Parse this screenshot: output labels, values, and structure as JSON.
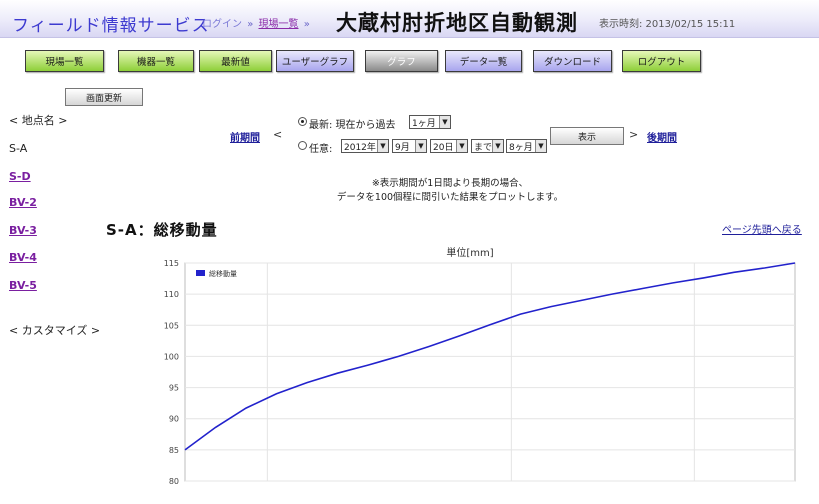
{
  "header": {
    "app_title": "フィールド情報サービス",
    "crumb_login": "ログイン",
    "crumb_sep": "»",
    "crumb_list": "現場一覧",
    "site_title": "大蔵村肘折地区自動観測",
    "display_time": "表示時刻: 2013/02/15 15:11"
  },
  "nav": {
    "site_list": "現場一覧",
    "device_list": "機器一覧",
    "latest": "最新値",
    "user_graph": "ユーザーグラフ",
    "graph": "グラフ",
    "data_list": "データ一覧",
    "download": "ダウンロード",
    "logout": "ログアウト"
  },
  "refresh_label": "画面更新",
  "sidebar": {
    "point_header": "< 地点名 >",
    "current_point": "S-A",
    "links": [
      "S-D",
      "BV-2",
      "BV-3",
      "BV-4",
      "BV-5"
    ],
    "customize": "< カスタマイズ >"
  },
  "period": {
    "prev_label": "前期間",
    "prev_arrow": "<",
    "latest_text": "最新: 現在から過去",
    "latest_range": "1ヶ月",
    "any_text": "任意:",
    "year": "2012年",
    "month": "9月",
    "day": "20日",
    "until": "まで",
    "months": "8ヶ月",
    "show_label": "表示",
    "next_arrow": ">",
    "next_label": "後期間",
    "note_line1": "※表示期間が1日間より長期の場合、",
    "note_line2": "データを100個程に間引いた結果をプロットします。"
  },
  "chart_section": {
    "title": "S-A：総移動量",
    "page_top_label": "ページ先頭へ戻る"
  },
  "colors": {
    "series": "#2222cc",
    "header_title": "#3d3ad0"
  },
  "chart_data": {
    "type": "line",
    "ylabel": "単位[mm]",
    "ylim": [
      80,
      115
    ],
    "yticks": [
      80,
      85,
      90,
      95,
      100,
      105,
      110,
      115
    ],
    "grid": true,
    "legend_position": "top-left",
    "series": [
      {
        "name": "総移動量",
        "x": [
          0,
          0.05,
          0.1,
          0.15,
          0.2,
          0.25,
          0.3,
          0.35,
          0.4,
          0.45,
          0.5,
          0.55,
          0.6,
          0.65,
          0.7,
          0.75,
          0.8,
          0.85,
          0.9,
          0.95,
          1.0
        ],
        "y": [
          85.0,
          88.6,
          91.7,
          94.0,
          95.8,
          97.3,
          98.6,
          100.0,
          101.6,
          103.3,
          105.1,
          106.8,
          108.0,
          109.0,
          110.0,
          110.9,
          111.8,
          112.6,
          113.5,
          114.2,
          115.0
        ]
      }
    ]
  }
}
